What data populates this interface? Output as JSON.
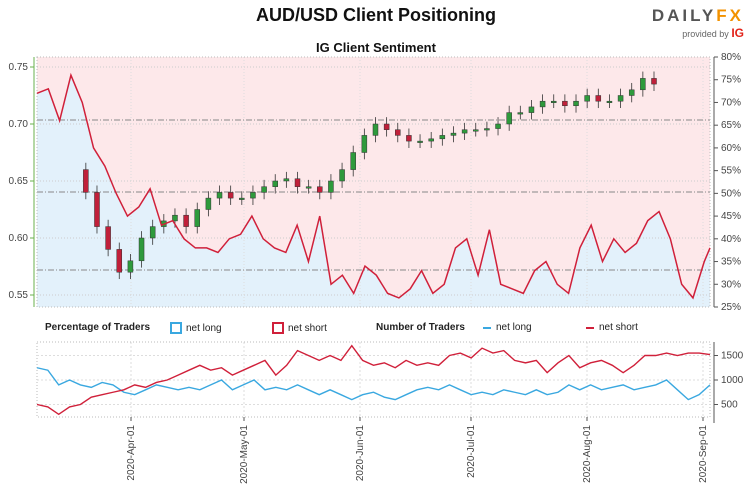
{
  "title": "AUD/USD Client Positioning",
  "logo": {
    "brand_a": "DAILY",
    "brand_b": "FX",
    "provided": "provided by",
    "ig": "IG"
  },
  "legend": {
    "pct_label": "Percentage of Traders",
    "pct_long": "net long",
    "pct_short": "net short",
    "num_label": "Number of Traders",
    "num_long": "net long",
    "num_short": "net short"
  },
  "colors": {
    "long": "#3aa8e0",
    "short": "#d0203a",
    "up": "#2e9a3c",
    "down": "#c0203a",
    "axis_left": "#6ab04c"
  },
  "chart_data": [
    {
      "type": "candlestick+line",
      "title": "IG Client Sentiment",
      "start_date": "2020-03-07",
      "step_days": 3,
      "left_axis": {
        "ticks": [
          "0.75",
          "0.70",
          "0.65",
          "0.60",
          "0.55"
        ],
        "range": [
          0.543,
          0.759
        ]
      },
      "right_axis": {
        "ticks": [
          "80%",
          "75%",
          "70%",
          "65%",
          "60%",
          "55%",
          "50%",
          "45%",
          "40%",
          "35%",
          "30%",
          "25%"
        ],
        "range": [
          25,
          80
        ]
      },
      "price_close": [
        0.66,
        0.64,
        0.61,
        0.59,
        0.57,
        0.58,
        0.6,
        0.61,
        0.615,
        0.62,
        0.61,
        0.625,
        0.635,
        0.64,
        0.635,
        0.635,
        0.64,
        0.645,
        0.65,
        0.652,
        0.645,
        0.645,
        0.64,
        0.65,
        0.66,
        0.675,
        0.69,
        0.7,
        0.695,
        0.69,
        0.685,
        0.685,
        0.687,
        0.69,
        0.692,
        0.695,
        0.695,
        0.696,
        0.7,
        0.71,
        0.71,
        0.715,
        0.72,
        0.72,
        0.716,
        0.72,
        0.725,
        0.72,
        0.72,
        0.725,
        0.73,
        0.74,
        0.735
      ],
      "net_long_pct": [
        72,
        73,
        66,
        76,
        70,
        60,
        56,
        50,
        45,
        47,
        51,
        43,
        44,
        40,
        38,
        38,
        37,
        40,
        41,
        45,
        40,
        38,
        37,
        43,
        35,
        45,
        30,
        32,
        28,
        34,
        32,
        28,
        27,
        29,
        33,
        28,
        30,
        38,
        40,
        32,
        42,
        30,
        29,
        28,
        33,
        35,
        30,
        28,
        38,
        43,
        35,
        40,
        37,
        39,
        44,
        46,
        40,
        30,
        27,
        35,
        38
      ]
    },
    {
      "type": "line",
      "start_date": "2020-03-07",
      "step_days": 3,
      "y_ticks": [
        "1500",
        "1000",
        "500"
      ],
      "y_range": [
        180,
        1800
      ],
      "x_ticks": [
        "2020-Apr-01",
        "2020-May-01",
        "2020-Jun-01",
        "2020-Jul-01",
        "2020-Aug-01",
        "2020-Sep-01"
      ],
      "series": [
        {
          "name": "net long",
          "values": [
            1250,
            1200,
            900,
            1000,
            900,
            850,
            950,
            900,
            750,
            700,
            800,
            900,
            850,
            800,
            850,
            800,
            900,
            1000,
            800,
            900,
            1000,
            800,
            850,
            800,
            900,
            800,
            700,
            800,
            700,
            600,
            700,
            750,
            650,
            600,
            700,
            800,
            850,
            800,
            900,
            800,
            700,
            750,
            700,
            800,
            750,
            700,
            800,
            700,
            750,
            900,
            800,
            900,
            800,
            850,
            900,
            800,
            850,
            900,
            1000,
            800,
            600,
            700,
            900
          ]
        },
        {
          "name": "net short",
          "values": [
            500,
            450,
            300,
            450,
            500,
            650,
            700,
            750,
            800,
            900,
            850,
            950,
            1000,
            1100,
            1200,
            1300,
            1200,
            1250,
            1100,
            1200,
            1300,
            1400,
            1100,
            1300,
            1600,
            1500,
            1400,
            1500,
            1400,
            1700,
            1400,
            1300,
            1350,
            1250,
            1400,
            1300,
            1350,
            1300,
            1500,
            1550,
            1450,
            1650,
            1550,
            1600,
            1400,
            1350,
            1400,
            1150,
            1350,
            1500,
            1250,
            1350,
            1400,
            1300,
            1150,
            1300,
            1500,
            1500,
            1550,
            1500,
            1550,
            1550,
            1520
          ]
        }
      ]
    }
  ]
}
